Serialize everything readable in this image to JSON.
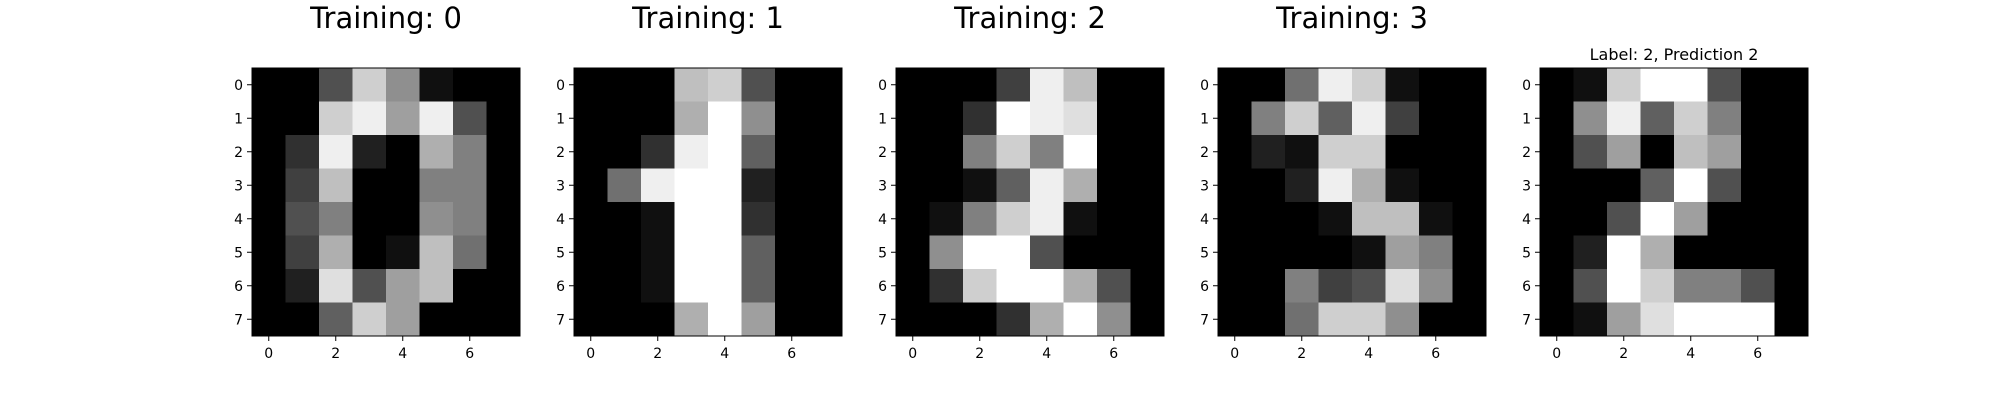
{
  "chart_data": [
    {
      "type": "heatmap",
      "title": "Training: 0",
      "colormap": "gray",
      "vmin": 0,
      "vmax": 16,
      "xticks": [
        "0",
        "2",
        "4",
        "6"
      ],
      "yticks": [
        "0",
        "1",
        "2",
        "3",
        "4",
        "5",
        "6",
        "7"
      ],
      "values": [
        [
          0,
          0,
          5,
          13,
          9,
          1,
          0,
          0
        ],
        [
          0,
          0,
          13,
          15,
          10,
          15,
          5,
          0
        ],
        [
          0,
          3,
          15,
          2,
          0,
          11,
          8,
          0
        ],
        [
          0,
          4,
          12,
          0,
          0,
          8,
          8,
          0
        ],
        [
          0,
          5,
          8,
          0,
          0,
          9,
          8,
          0
        ],
        [
          0,
          4,
          11,
          0,
          1,
          12,
          7,
          0
        ],
        [
          0,
          2,
          14,
          5,
          10,
          12,
          0,
          0
        ],
        [
          0,
          0,
          6,
          13,
          10,
          0,
          0,
          0
        ]
      ]
    },
    {
      "type": "heatmap",
      "title": "Training: 1",
      "colormap": "gray",
      "vmin": 0,
      "vmax": 16,
      "xticks": [
        "0",
        "2",
        "4",
        "6"
      ],
      "yticks": [
        "0",
        "1",
        "2",
        "3",
        "4",
        "5",
        "6",
        "7"
      ],
      "values": [
        [
          0,
          0,
          0,
          12,
          13,
          5,
          0,
          0
        ],
        [
          0,
          0,
          0,
          11,
          16,
          9,
          0,
          0
        ],
        [
          0,
          0,
          3,
          15,
          16,
          6,
          0,
          0
        ],
        [
          0,
          7,
          15,
          16,
          16,
          2,
          0,
          0
        ],
        [
          0,
          0,
          1,
          16,
          16,
          3,
          0,
          0
        ],
        [
          0,
          0,
          1,
          16,
          16,
          6,
          0,
          0
        ],
        [
          0,
          0,
          1,
          16,
          16,
          6,
          0,
          0
        ],
        [
          0,
          0,
          0,
          11,
          16,
          10,
          0,
          0
        ]
      ]
    },
    {
      "type": "heatmap",
      "title": "Training: 2",
      "colormap": "gray",
      "vmin": 0,
      "vmax": 16,
      "xticks": [
        "0",
        "2",
        "4",
        "6"
      ],
      "yticks": [
        "0",
        "1",
        "2",
        "3",
        "4",
        "5",
        "6",
        "7"
      ],
      "values": [
        [
          0,
          0,
          0,
          4,
          15,
          12,
          0,
          0
        ],
        [
          0,
          0,
          3,
          16,
          15,
          14,
          0,
          0
        ],
        [
          0,
          0,
          8,
          13,
          8,
          16,
          0,
          0
        ],
        [
          0,
          0,
          1,
          6,
          15,
          11,
          0,
          0
        ],
        [
          0,
          1,
          8,
          13,
          15,
          1,
          0,
          0
        ],
        [
          0,
          9,
          16,
          16,
          5,
          0,
          0,
          0
        ],
        [
          0,
          3,
          13,
          16,
          16,
          11,
          5,
          0
        ],
        [
          0,
          0,
          0,
          3,
          11,
          16,
          9,
          0
        ]
      ]
    },
    {
      "type": "heatmap",
      "title": "Training: 3",
      "colormap": "gray",
      "vmin": 0,
      "vmax": 16,
      "xticks": [
        "0",
        "2",
        "4",
        "6"
      ],
      "yticks": [
        "0",
        "1",
        "2",
        "3",
        "4",
        "5",
        "6",
        "7"
      ],
      "values": [
        [
          0,
          0,
          7,
          15,
          13,
          1,
          0,
          0
        ],
        [
          0,
          8,
          13,
          6,
          15,
          4,
          0,
          0
        ],
        [
          0,
          2,
          1,
          13,
          13,
          0,
          0,
          0
        ],
        [
          0,
          0,
          2,
          15,
          11,
          1,
          0,
          0
        ],
        [
          0,
          0,
          0,
          1,
          12,
          12,
          1,
          0
        ],
        [
          0,
          0,
          0,
          0,
          1,
          10,
          8,
          0
        ],
        [
          0,
          0,
          8,
          4,
          5,
          14,
          9,
          0
        ],
        [
          0,
          0,
          7,
          13,
          13,
          9,
          0,
          0
        ]
      ]
    },
    {
      "type": "heatmap",
      "title": "Label: 2, Prediction 2",
      "colormap": "gray",
      "vmin": 0,
      "vmax": 16,
      "xticks": [
        "0",
        "2",
        "4",
        "6"
      ],
      "yticks": [
        "0",
        "1",
        "2",
        "3",
        "4",
        "5",
        "6",
        "7"
      ],
      "values": [
        [
          0,
          1,
          13,
          16,
          16,
          5,
          0,
          0
        ],
        [
          0,
          9,
          15,
          6,
          13,
          8,
          0,
          0
        ],
        [
          0,
          5,
          10,
          0,
          12,
          10,
          0,
          0
        ],
        [
          0,
          0,
          0,
          6,
          16,
          5,
          0,
          0
        ],
        [
          0,
          0,
          5,
          16,
          10,
          0,
          0,
          0
        ],
        [
          0,
          2,
          16,
          11,
          0,
          0,
          0,
          0
        ],
        [
          0,
          5,
          16,
          13,
          8,
          8,
          5,
          0
        ],
        [
          0,
          1,
          10,
          14,
          16,
          16,
          16,
          0
        ]
      ]
    }
  ]
}
